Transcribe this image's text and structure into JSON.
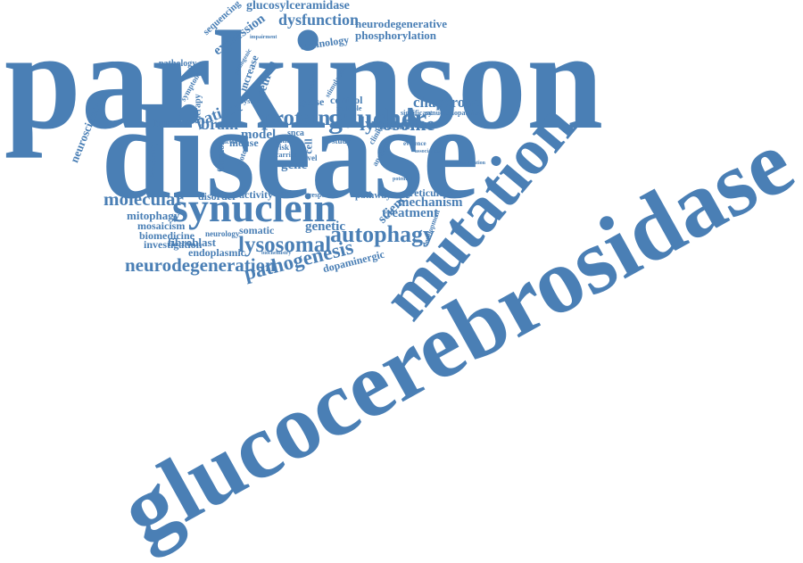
{
  "color": "#4a7fb5",
  "words": [
    "parkinson",
    "disease",
    "glucocerebrosidase",
    "mutation",
    "synuclein",
    "gaucher",
    "protein",
    "lysosome",
    "lysosomal",
    "autophagy",
    "neurodegeneration",
    "pathogenesis",
    "molecular",
    "chaperone",
    "dysfunction",
    "expression",
    "glucosylceramidase",
    "neurodegenerative",
    "phosphorylation",
    "technology",
    "sequencing",
    "patient",
    "brain",
    "human",
    "model",
    "gene",
    "gcase",
    "control",
    "genetic",
    "activity",
    "disorder",
    "mitophagy",
    "mosaicism",
    "biomedicine",
    "investigation",
    "fibroblast",
    "endoplasmic",
    "somatic",
    "neurology",
    "science",
    "treatment",
    "mechanism",
    "reticulum",
    "dopaminergic",
    "neuroscience",
    "neuron",
    "increase",
    "pathology",
    "synucleinopathies",
    "significant",
    "therapy",
    "deficiency",
    "mouse",
    "function",
    "response",
    "pathway",
    "complex",
    "level",
    "cell",
    "snca",
    "risk",
    "pink",
    "study",
    "clinical",
    "analysis",
    "multiple",
    "system",
    "prodromal",
    "evidence",
    "association",
    "identification",
    "potential",
    "development",
    "carrier",
    "motor",
    "factor",
    "stimulation",
    "variant",
    "impairment",
    "pathogenic",
    "symptom",
    "biochemistry"
  ]
}
